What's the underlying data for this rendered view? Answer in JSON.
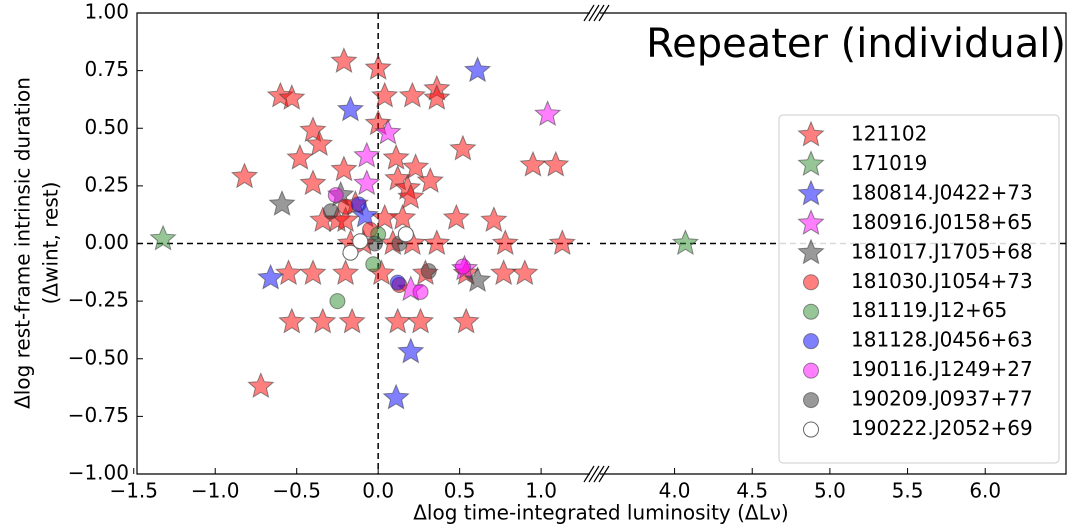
{
  "chart_data": {
    "type": "scatter",
    "annotation": "Repeater (individual)",
    "xlabel": "Δlog time-integrated luminosity (ΔLν)",
    "ylabel": [
      "Δlog rest-frame intrinsic duration",
      "(Δwint, rest)"
    ],
    "xlim": [
      -1.48,
      6.52
    ],
    "xbreak": [
      1.3,
      3.52
    ],
    "ylim": [
      -1.0,
      1.0
    ],
    "xticks": [
      {
        "value": -1.5,
        "label": "−1.5"
      },
      {
        "value": -1.0,
        "label": "−1.0"
      },
      {
        "value": -0.5,
        "label": "−0.5"
      },
      {
        "value": 0,
        "label": "0.0"
      },
      {
        "value": 0.5,
        "label": "0.5"
      },
      {
        "value": 1.0,
        "label": "1.0"
      },
      {
        "value": 4.0,
        "label": "4.0"
      },
      {
        "value": 4.5,
        "label": "4.5"
      },
      {
        "value": 5.0,
        "label": "5.0"
      },
      {
        "value": 5.5,
        "label": "5.5"
      },
      {
        "value": 6.0,
        "label": "6.0"
      }
    ],
    "yticks": [
      {
        "value": 1.0,
        "label": "1.00"
      },
      {
        "value": 0.75,
        "label": "0.75"
      },
      {
        "value": 0.5,
        "label": "0.50"
      },
      {
        "value": 0.25,
        "label": "0.25"
      },
      {
        "value": 0,
        "label": "0.00"
      },
      {
        "value": -0.25,
        "label": "−0.25"
      },
      {
        "value": -0.5,
        "label": "−0.50"
      },
      {
        "value": -0.75,
        "label": "−0.75"
      },
      {
        "value": -1.0,
        "label": "−1.00"
      }
    ],
    "legend": "right",
    "series": [
      {
        "name": "121102",
        "marker": "star",
        "color": "#ff0000",
        "x": [
          -0.21,
          0,
          -0.6,
          -0.53,
          0.04,
          0.21,
          0.36,
          0.36,
          -0.4,
          -0.36,
          0,
          -0.48,
          -0.82,
          -0.21,
          0.11,
          0.23,
          0.12,
          0.18,
          0.32,
          0.52,
          0.95,
          1.09,
          -0.4,
          0.48,
          0.71,
          0.15,
          -0.34,
          -0.25,
          -0.2,
          -0.14,
          -0.17,
          -0.09,
          0.09,
          0.21,
          0.36,
          0.78,
          1.13,
          -0.55,
          -0.4,
          -0.2,
          0.02,
          0.29,
          0.54,
          0.77,
          0.9,
          -0.53,
          -0.34,
          -0.16,
          0.12,
          0.26,
          0.54,
          -0.72,
          0.2,
          0.04
        ],
        "values": [
          0.79,
          0.76,
          0.64,
          0.63,
          0.64,
          0.64,
          0.67,
          0.63,
          0.49,
          0.43,
          0.52,
          0.37,
          0.29,
          0.32,
          0.37,
          0.33,
          0.28,
          0.24,
          0.27,
          0.41,
          0.34,
          0.34,
          0.26,
          0.11,
          0.1,
          0.11,
          0.1,
          0.1,
          0.1,
          0.17,
          0,
          0,
          0,
          0,
          0,
          0,
          0,
          -0.13,
          -0.13,
          -0.13,
          -0.13,
          -0.13,
          -0.13,
          -0.13,
          -0.13,
          -0.34,
          -0.34,
          -0.34,
          -0.34,
          -0.34,
          -0.34,
          -0.62,
          0.2,
          0.11
        ]
      },
      {
        "name": "171019",
        "marker": "star",
        "color": "#2e8b2e",
        "x": [
          -1.32,
          4.07
        ],
        "values": [
          0.02,
          0
        ]
      },
      {
        "name": "180814.J0422+73",
        "marker": "star",
        "color": "#0000ff",
        "x": [
          0.61,
          -0.17,
          -0.66,
          0.2,
          0.11,
          -0.08
        ],
        "values": [
          0.75,
          0.58,
          -0.15,
          -0.47,
          -0.67,
          0.12
        ]
      },
      {
        "name": "180916.J0158+65",
        "marker": "star",
        "color": "#ff00ff",
        "x": [
          0.06,
          1.04,
          -0.07,
          -0.07,
          0.53,
          0.2
        ],
        "values": [
          0.48,
          0.56,
          0.38,
          0.26,
          -0.11,
          -0.2
        ]
      },
      {
        "name": "181017.J1705+68",
        "marker": "star",
        "color": "#333333",
        "x": [
          -0.59,
          0.61,
          -0.23
        ],
        "values": [
          0.17,
          -0.16,
          0.21
        ]
      },
      {
        "name": "181030.J1054+73",
        "marker": "circle",
        "color": "#ff0000",
        "x": [
          -0.2,
          -0.05,
          0.13
        ],
        "values": [
          0.16,
          0.06,
          -0.18
        ]
      },
      {
        "name": "181119.J12+65",
        "marker": "circle",
        "color": "#2e8b2e",
        "x": [
          -0.25,
          0,
          -0.03
        ],
        "values": [
          -0.25,
          0.04,
          -0.09
        ]
      },
      {
        "name": "181128.J0456+63",
        "marker": "circle",
        "color": "#0000ff",
        "x": [
          -0.12,
          0.12
        ],
        "values": [
          0.17,
          -0.17
        ]
      },
      {
        "name": "190116.J1249+27",
        "marker": "circle",
        "color": "#ff00ff",
        "x": [
          -0.26,
          0.26,
          0.52
        ],
        "values": [
          0.21,
          -0.21,
          -0.1
        ]
      },
      {
        "name": "190209.J0937+77",
        "marker": "circle",
        "color": "#333333",
        "x": [
          -0.29,
          0.13,
          0.31,
          -0.02
        ],
        "values": [
          0.14,
          0,
          -0.12,
          0
        ]
      },
      {
        "name": "190222.J2052+69",
        "marker": "hollow-circle",
        "color": "#666666",
        "x": [
          -0.17,
          0.17,
          -0.11
        ],
        "values": [
          -0.04,
          0.04,
          0.01
        ]
      }
    ]
  }
}
